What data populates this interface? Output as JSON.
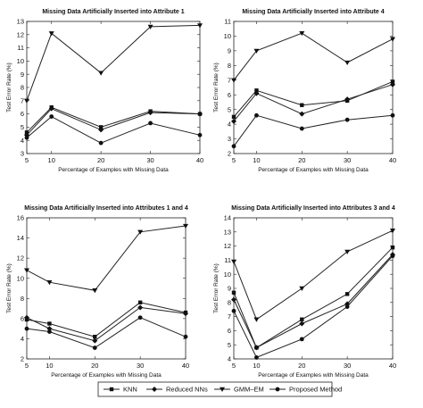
{
  "legend": {
    "entries": [
      {
        "name": "KNN",
        "marker": "square"
      },
      {
        "name": "Reduced NNs",
        "marker": "diamond"
      },
      {
        "name": "GMM–EM",
        "marker": "triangle-down"
      },
      {
        "name": "Proposed Method",
        "marker": "circle"
      }
    ]
  },
  "chart_data": [
    {
      "type": "line",
      "title": "Missing Data Artificially Inserted into Attribute 1",
      "xlabel": "Percentage of Examples with Missing Data",
      "ylabel": "Test Error Rate (%)",
      "x": [
        5,
        10,
        20,
        30,
        40
      ],
      "xticks": [
        5,
        10,
        20,
        30,
        40
      ],
      "xlim": [
        5,
        40
      ],
      "ylim": [
        3,
        13
      ],
      "yticks": [
        3,
        4,
        5,
        6,
        7,
        8,
        9,
        10,
        11,
        12,
        13
      ],
      "series": [
        {
          "name": "KNN",
          "marker": "square",
          "values": [
            4.6,
            6.5,
            5.0,
            6.2,
            6.0
          ]
        },
        {
          "name": "Reduced NNs",
          "marker": "diamond",
          "values": [
            4.4,
            6.4,
            4.8,
            6.1,
            6.0
          ]
        },
        {
          "name": "GMM–EM",
          "marker": "triangle-down",
          "values": [
            7.0,
            12.1,
            9.1,
            12.6,
            12.7
          ]
        },
        {
          "name": "Proposed Method",
          "marker": "circle",
          "values": [
            4.2,
            5.8,
            3.8,
            5.3,
            4.4
          ]
        }
      ]
    },
    {
      "type": "line",
      "title": "Missing Data Artificially Inserted into Attribute 4",
      "xlabel": "Percentage of Examples with Missing Data",
      "ylabel": "Test Error Rate (%)",
      "x": [
        5,
        10,
        20,
        30,
        40
      ],
      "xticks": [
        5,
        10,
        20,
        30,
        40
      ],
      "xlim": [
        5,
        40
      ],
      "ylim": [
        2,
        11
      ],
      "yticks": [
        2,
        3,
        4,
        5,
        6,
        7,
        8,
        9,
        10,
        11
      ],
      "series": [
        {
          "name": "KNN",
          "marker": "square",
          "values": [
            4.5,
            6.3,
            5.3,
            5.6,
            6.9
          ]
        },
        {
          "name": "Reduced NNs",
          "marker": "diamond",
          "values": [
            4.2,
            6.1,
            4.7,
            5.7,
            6.7
          ]
        },
        {
          "name": "GMM–EM",
          "marker": "triangle-down",
          "values": [
            7.0,
            9.0,
            10.2,
            8.2,
            9.8
          ]
        },
        {
          "name": "Proposed Method",
          "marker": "circle",
          "values": [
            2.5,
            4.6,
            3.7,
            4.3,
            4.6
          ]
        }
      ]
    },
    {
      "type": "line",
      "title": "Missing Data Artificially Inserted into Attributes 1 and 4",
      "xlabel": "Percentage of Examples with Missing Data",
      "ylabel": "Test Error Rate (%)",
      "x": [
        5,
        10,
        20,
        30,
        40
      ],
      "xticks": [
        5,
        10,
        20,
        30,
        40
      ],
      "xlim": [
        5,
        40
      ],
      "ylim": [
        2,
        16
      ],
      "yticks": [
        2,
        4,
        6,
        8,
        10,
        12,
        14,
        16
      ],
      "series": [
        {
          "name": "KNN",
          "marker": "square",
          "values": [
            5.9,
            5.5,
            4.2,
            7.6,
            6.6
          ]
        },
        {
          "name": "Reduced NNs",
          "marker": "diamond",
          "values": [
            6.1,
            5.0,
            3.8,
            7.1,
            6.5
          ]
        },
        {
          "name": "GMM–EM",
          "marker": "triangle-down",
          "values": [
            10.8,
            9.6,
            8.8,
            14.6,
            15.2
          ]
        },
        {
          "name": "Proposed Method",
          "marker": "circle",
          "values": [
            5.0,
            4.7,
            3.1,
            6.1,
            4.2
          ]
        }
      ]
    },
    {
      "type": "line",
      "title": "Missing Data Artificially Inserted into Attributes 3 and 4",
      "xlabel": "Percentage of Examples with Missing Data",
      "ylabel": "Test Error Rate (%)",
      "x": [
        5,
        10,
        20,
        30,
        40
      ],
      "xticks": [
        5,
        10,
        20,
        30,
        40
      ],
      "xlim": [
        5,
        40
      ],
      "ylim": [
        4,
        14
      ],
      "yticks": [
        4,
        5,
        6,
        7,
        8,
        9,
        10,
        11,
        12,
        13,
        14
      ],
      "series": [
        {
          "name": "KNN",
          "marker": "square",
          "values": [
            8.7,
            4.8,
            6.8,
            8.6,
            11.9
          ]
        },
        {
          "name": "Reduced NNs",
          "marker": "diamond",
          "values": [
            8.2,
            4.8,
            6.5,
            7.9,
            11.4
          ]
        },
        {
          "name": "GMM–EM",
          "marker": "triangle-down",
          "values": [
            10.9,
            6.8,
            9.0,
            11.6,
            13.1
          ]
        },
        {
          "name": "Proposed Method",
          "marker": "circle",
          "values": [
            7.4,
            4.1,
            5.4,
            7.7,
            11.3
          ]
        }
      ]
    }
  ]
}
